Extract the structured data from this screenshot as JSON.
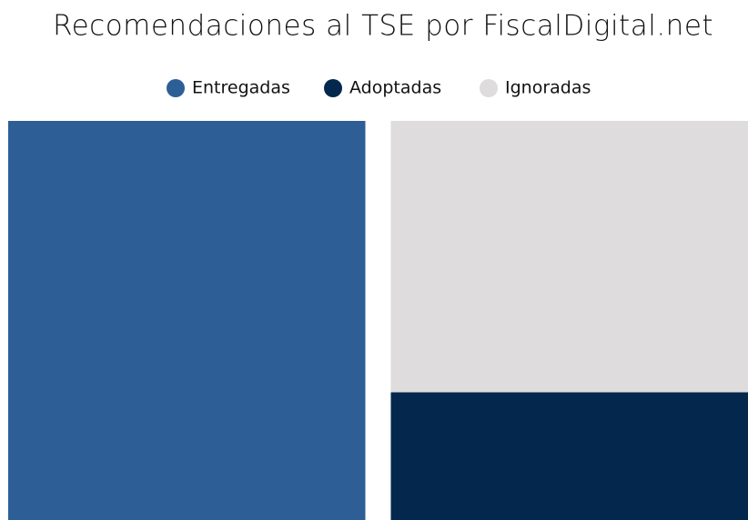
{
  "chart_data": {
    "type": "bar",
    "stacked": true,
    "title": "Recomendaciones al TSE por FiscalDigital.net",
    "categories": [
      null,
      null
    ],
    "series": [
      {
        "name": "Entregadas",
        "color": "#2e5e96",
        "values": [
          100,
          null
        ]
      },
      {
        "name": "Adoptadas",
        "color": "#04284d",
        "values": [
          null,
          32
        ]
      },
      {
        "name": "Ignoradas",
        "color": "#dedcdd",
        "values": [
          null,
          68
        ]
      }
    ],
    "ylim": [
      0,
      100
    ],
    "legend": "top"
  }
}
